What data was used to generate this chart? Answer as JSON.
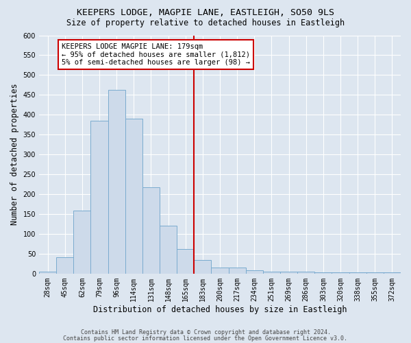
{
  "title": "KEEPERS LODGE, MAGPIE LANE, EASTLEIGH, SO50 9LS",
  "subtitle": "Size of property relative to detached houses in Eastleigh",
  "xlabel": "Distribution of detached houses by size in Eastleigh",
  "ylabel": "Number of detached properties",
  "bar_labels": [
    "28sqm",
    "45sqm",
    "62sqm",
    "79sqm",
    "96sqm",
    "114sqm",
    "131sqm",
    "148sqm",
    "165sqm",
    "183sqm",
    "200sqm",
    "217sqm",
    "234sqm",
    "251sqm",
    "269sqm",
    "286sqm",
    "303sqm",
    "320sqm",
    "338sqm",
    "355sqm",
    "372sqm"
  ],
  "bar_values": [
    5,
    42,
    158,
    385,
    462,
    390,
    217,
    120,
    62,
    35,
    15,
    15,
    8,
    5,
    5,
    5,
    3,
    3,
    3,
    3,
    3
  ],
  "bar_color": "#cddaea",
  "bar_edgecolor": "#7aabcf",
  "ylim": [
    0,
    600
  ],
  "yticks": [
    0,
    50,
    100,
    150,
    200,
    250,
    300,
    350,
    400,
    450,
    500,
    550,
    600
  ],
  "vline_x_index": 9,
  "vline_color": "#cc0000",
  "annotation_text": "KEEPERS LODGE MAGPIE LANE: 179sqm\n← 95% of detached houses are smaller (1,812)\n5% of semi-detached houses are larger (98) →",
  "annotation_box_facecolor": "#ffffff",
  "annotation_box_edgecolor": "#cc0000",
  "footer1": "Contains HM Land Registry data © Crown copyright and database right 2024.",
  "footer2": "Contains public sector information licensed under the Open Government Licence v3.0.",
  "background_color": "#dde6f0",
  "grid_color": "#ffffff",
  "title_fontsize": 9.5,
  "subtitle_fontsize": 8.5,
  "tick_fontsize": 7,
  "ylabel_fontsize": 8.5,
  "xlabel_fontsize": 8.5,
  "footer_fontsize": 6,
  "annot_fontsize": 7.5
}
